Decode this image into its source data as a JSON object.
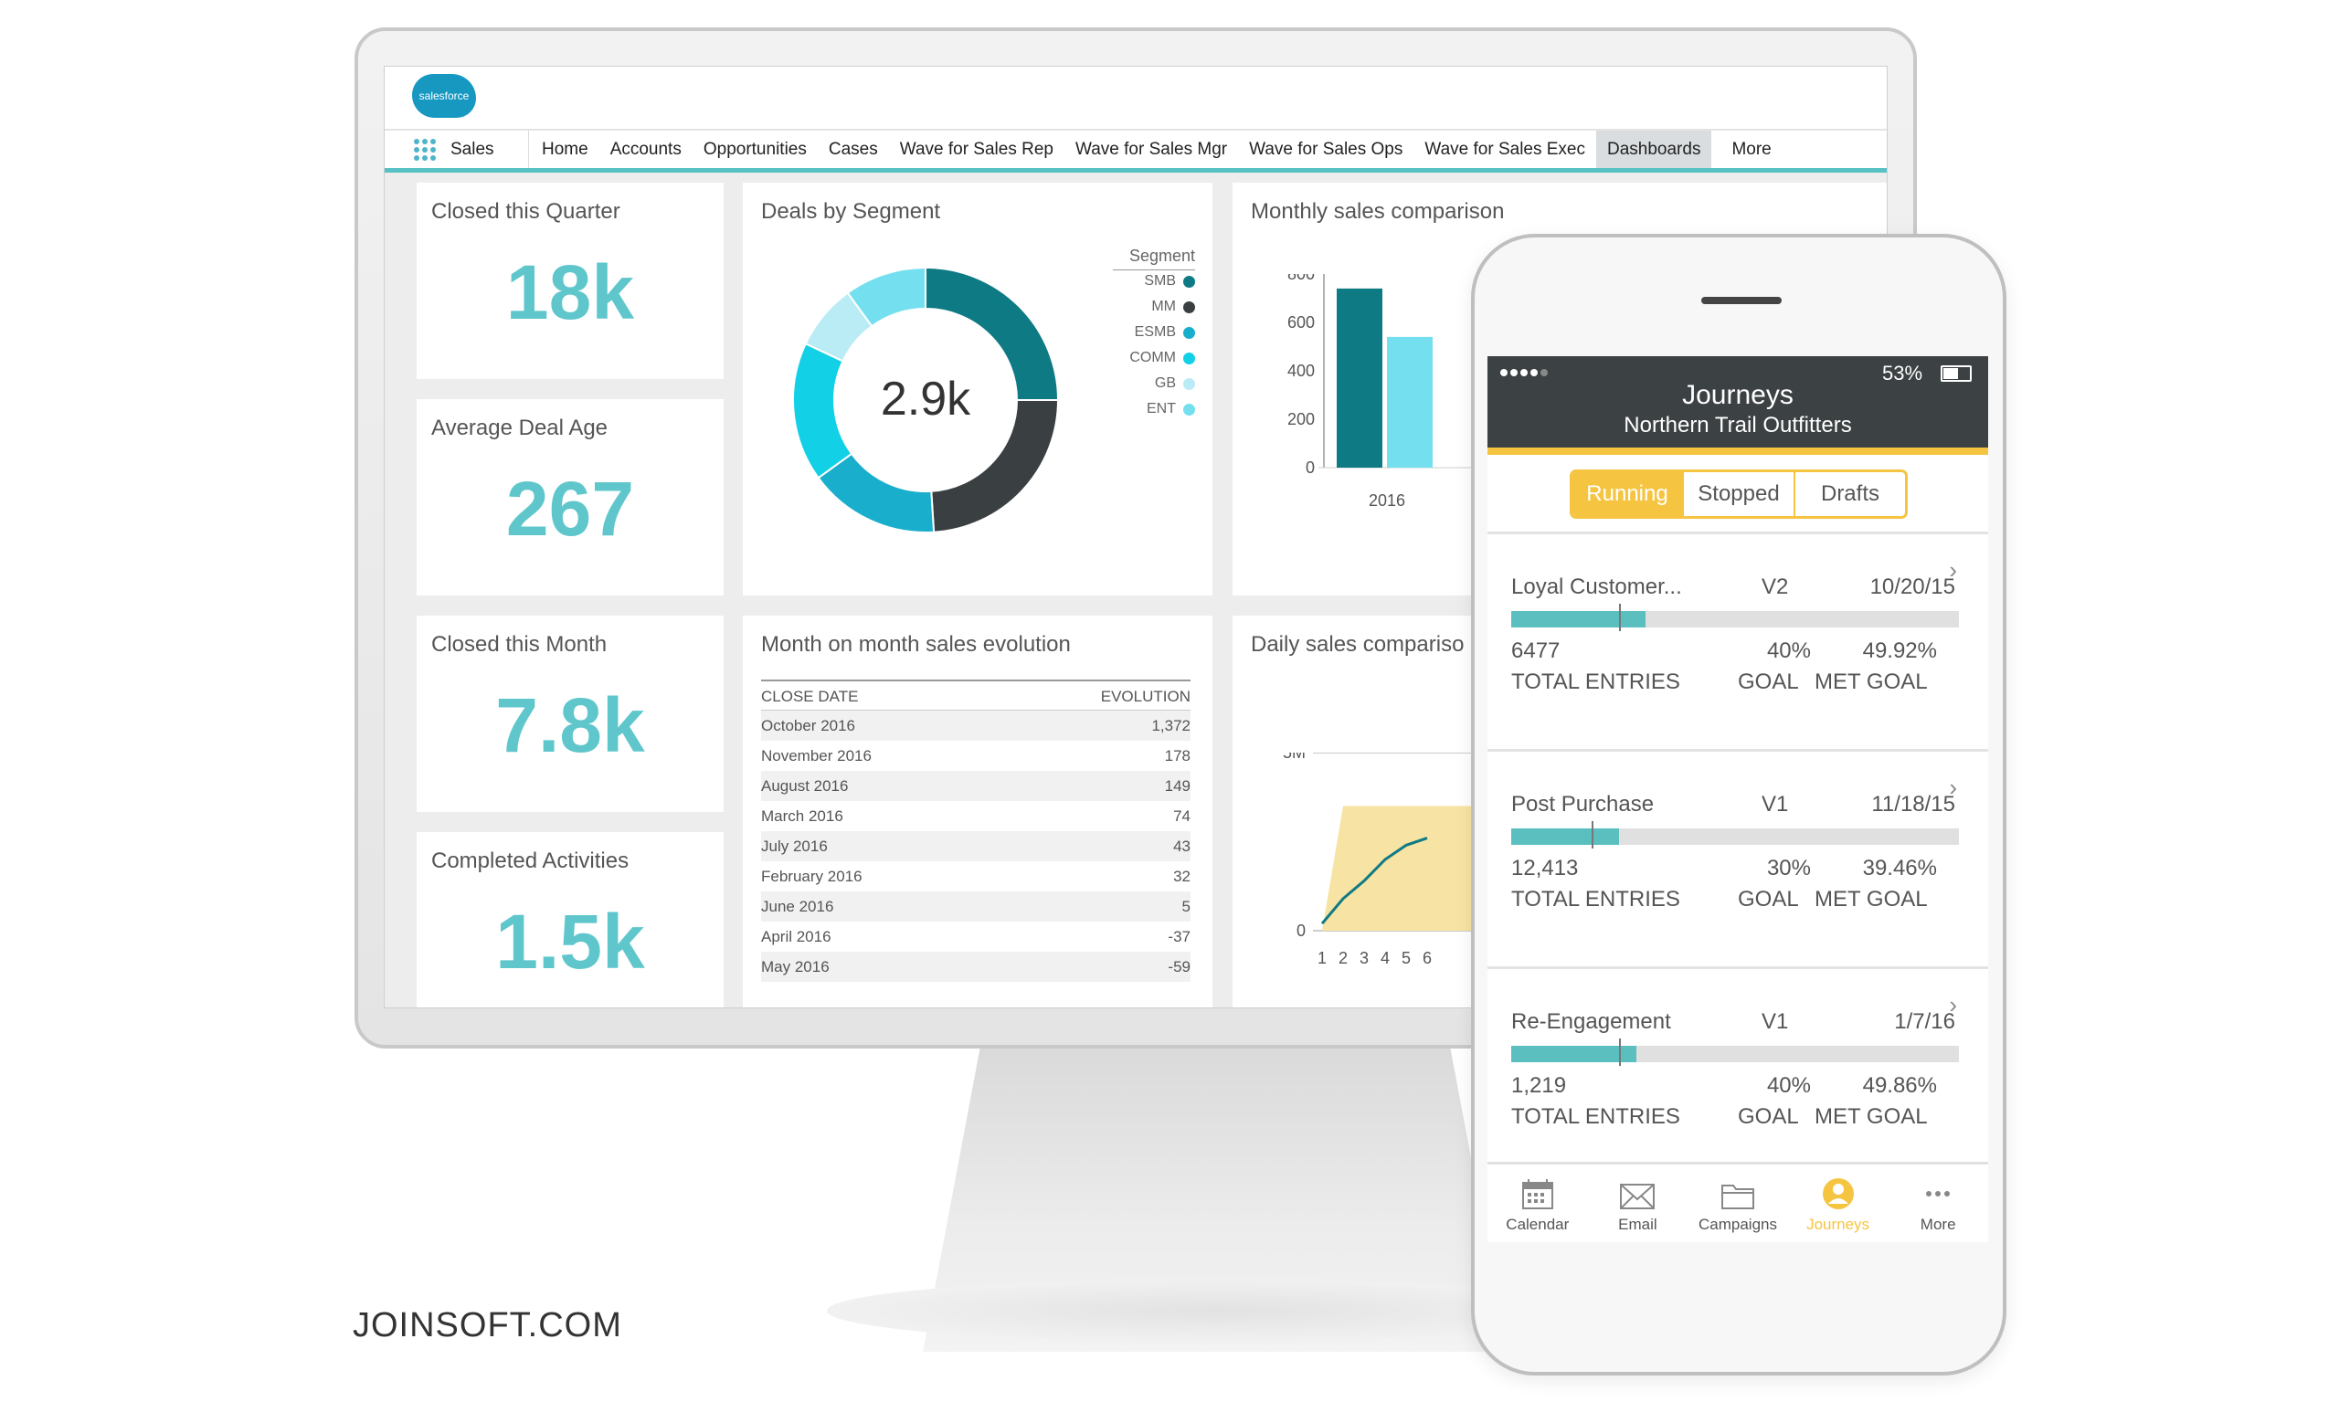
{
  "brand": "JOINSOFT.COM",
  "desktop": {
    "logo_text": "salesforce",
    "app_name": "Sales",
    "nav": [
      "Home",
      "Accounts",
      "Opportunities",
      "Cases",
      "Wave for Sales Rep",
      "Wave for Sales Mgr",
      "Wave for Sales Ops",
      "Wave for Sales Exec",
      "Dashboards",
      "More"
    ],
    "active_nav": "Dashboards",
    "kpis": [
      {
        "title": "Closed this Quarter",
        "value": "18k"
      },
      {
        "title": "Average Deal Age",
        "value": "267"
      },
      {
        "title": "Closed this Month",
        "value": "7.8k"
      },
      {
        "title": "Completed Activities",
        "value": "1.5k"
      }
    ],
    "segment_card": {
      "title": "Deals by  Segment",
      "center_value": "2.9k",
      "legend_title": "Segment",
      "legend": [
        {
          "name": "SMB",
          "color": "#0e7a84"
        },
        {
          "name": "MM",
          "color": "#3a4042"
        },
        {
          "name": "ESMB",
          "color": "#1aaecd"
        },
        {
          "name": "COMM",
          "color": "#12d0e6"
        },
        {
          "name": "GB",
          "color": "#b9ecf5"
        },
        {
          "name": "ENT",
          "color": "#74e0ef"
        }
      ]
    },
    "monthly_card": {
      "title": "Monthly sales comparison"
    },
    "evolution_card": {
      "title": "Month on month sales evolution",
      "columns": [
        "CLOSE DATE",
        "EVOLUTION"
      ],
      "rows": [
        [
          "October 2016",
          "1,372"
        ],
        [
          "November 2016",
          "178"
        ],
        [
          "August 2016",
          "149"
        ],
        [
          "March 2016",
          "74"
        ],
        [
          "July 2016",
          "43"
        ],
        [
          "February 2016",
          "32"
        ],
        [
          "June 2016",
          "5"
        ],
        [
          "April 2016",
          "-37"
        ],
        [
          "May 2016",
          "-59"
        ]
      ]
    },
    "daily_card": {
      "title": "Daily sales compariso"
    }
  },
  "chart_data": [
    {
      "type": "pie",
      "title": "Deals by  Segment",
      "center_label": "2.9k",
      "categories": [
        "SMB",
        "MM",
        "ESMB",
        "COMM",
        "GB",
        "ENT"
      ],
      "values": [
        25,
        24,
        16,
        17,
        8,
        10
      ]
    },
    {
      "type": "bar",
      "title": "Monthly sales comparison",
      "categories": [
        "2016"
      ],
      "series": [
        {
          "values": [
            740
          ]
        },
        {
          "values": [
            540
          ]
        }
      ],
      "yticks": [
        "800",
        "600",
        "400",
        "200",
        "0"
      ],
      "ylim": [
        0,
        800
      ],
      "colors": [
        "#0e7a84",
        "#74e0ef"
      ]
    },
    {
      "type": "area",
      "title": "Daily sales compariso",
      "x": [
        1,
        2,
        3,
        4,
        5,
        6
      ],
      "yticks": [
        "5M",
        "0"
      ],
      "series": [
        {
          "values": [
            0.2,
            0.9,
            1.4,
            2.0,
            2.4,
            2.6
          ]
        }
      ],
      "band_top": 3.5,
      "band_color": "#f7e3a3",
      "line_color": "#0e7a84"
    }
  ],
  "phone": {
    "status": {
      "battery": "53%"
    },
    "header_title": "Journeys",
    "header_subtitle": "Northern Trail Outfitters",
    "segments": [
      "Running",
      "Stopped",
      "Drafts"
    ],
    "active_segment": "Running",
    "journeys": [
      {
        "name": "Loyal Customer...",
        "version": "V2",
        "date": "10/20/15",
        "entries": "6477",
        "goal": "40%",
        "met": "49.92%",
        "progress": 0.3,
        "goal_mark": 0.24,
        "entries_label": "TOTAL ENTRIES",
        "goal_label": "GOAL",
        "met_label": "MET GOAL"
      },
      {
        "name": "Post Purchase",
        "version": "V1",
        "date": "11/18/15",
        "entries": "12,413",
        "goal": "30%",
        "met": "39.46%",
        "progress": 0.24,
        "goal_mark": 0.18,
        "entries_label": "TOTAL ENTRIES",
        "goal_label": "GOAL",
        "met_label": "MET GOAL"
      },
      {
        "name": "Re-Engagement",
        "version": "V1",
        "date": "1/7/16",
        "entries": "1,219",
        "goal": "40%",
        "met": "49.86%",
        "progress": 0.28,
        "goal_mark": 0.24,
        "entries_label": "TOTAL ENTRIES",
        "goal_label": "GOAL",
        "met_label": "MET GOAL"
      }
    ],
    "tabs": [
      {
        "label": "Calendar",
        "icon": "calendar-icon"
      },
      {
        "label": "Email",
        "icon": "envelope-icon"
      },
      {
        "label": "Campaigns",
        "icon": "folder-icon"
      },
      {
        "label": "Journeys",
        "icon": "person-icon"
      },
      {
        "label": "More",
        "icon": "ellipsis-icon"
      }
    ],
    "active_tab": "Journeys",
    "accent": "#f5c542"
  }
}
